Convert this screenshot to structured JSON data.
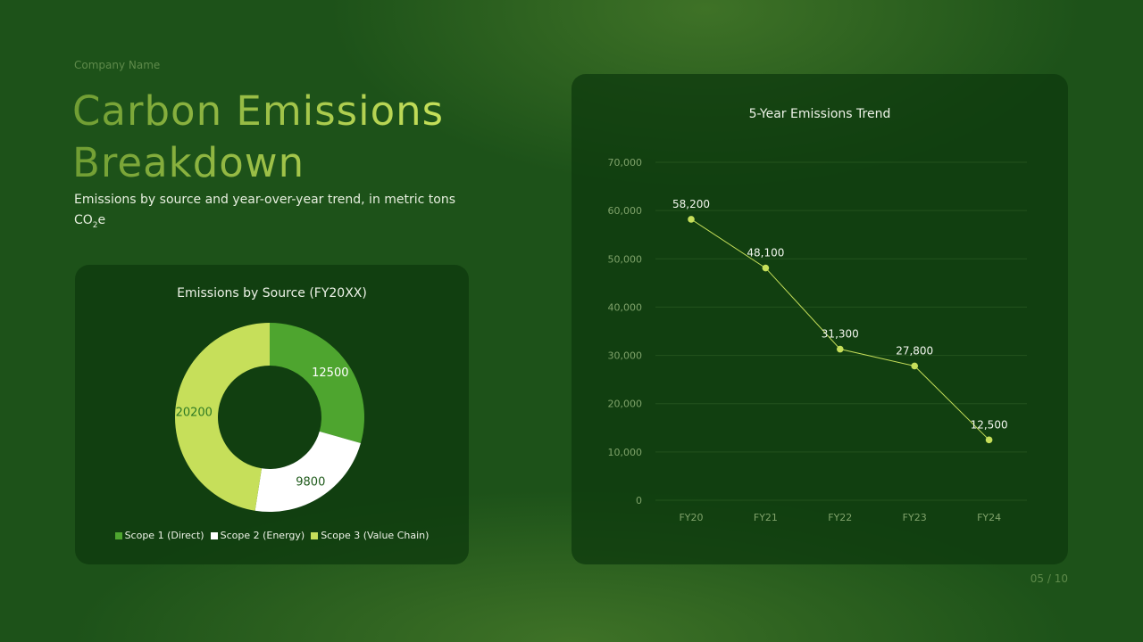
{
  "company": "Company Name",
  "title_lines": [
    "Carbon Emissions",
    "Breakdown"
  ],
  "subtitle": {
    "text": "Emissions by source and year-over-year trend, in metric tons ",
    "co": "CO",
    "sub": "2",
    "e": "e"
  },
  "page_number": "05 / 10",
  "colors": {
    "scope1": "#4ea52f",
    "scope2": "#ffffff",
    "scope3": "#c6df5a",
    "line": "#c6df5a"
  },
  "chart_data": [
    {
      "type": "pie",
      "title": "Emissions by Source (FY20XX)",
      "categories": [
        "Scope 1 (Direct)",
        "Scope 2 (Energy)",
        "Scope 3 (Value Chain)"
      ],
      "values": [
        12500,
        9800,
        20200
      ],
      "value_labels": [
        "12500",
        "9800",
        "20200"
      ],
      "donut": true,
      "legend": "bottom"
    },
    {
      "type": "line",
      "title": "5-Year Emissions Trend",
      "categories": [
        "FY20",
        "FY21",
        "FY22",
        "FY23",
        "FY24"
      ],
      "values": [
        58200,
        48100,
        31300,
        27800,
        12500
      ],
      "data_labels": [
        "58,200",
        "48,100",
        "31,300",
        "27,800",
        "12,500"
      ],
      "ylim": [
        0,
        70000
      ],
      "yticks": [
        "0",
        "10,000",
        "20,000",
        "30,000",
        "40,000",
        "50,000",
        "60,000",
        "70,000"
      ],
      "grid": true
    }
  ]
}
